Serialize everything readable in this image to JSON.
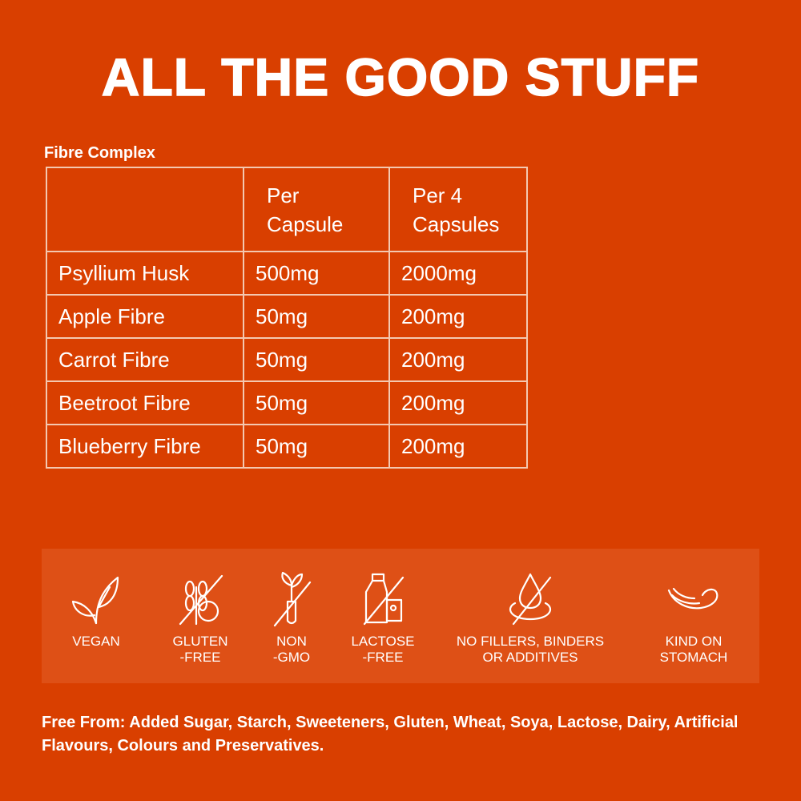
{
  "title": "ALL THE GOOD STUFF",
  "table": {
    "caption": "Fibre Complex",
    "headers": [
      "",
      "Per\nCapsule",
      "Per 4\nCapsules"
    ],
    "rows": [
      [
        "Psyllium Husk",
        "500mg",
        "2000mg"
      ],
      [
        "Apple Fibre",
        "50mg",
        "200mg"
      ],
      [
        "Carrot Fibre",
        "50mg",
        "200mg"
      ],
      [
        "Beetroot Fibre",
        "50mg",
        "200mg"
      ],
      [
        "Blueberry Fibre",
        "50mg",
        "200mg"
      ]
    ]
  },
  "badges": [
    {
      "icon": "leaf-icon",
      "label": "VEGAN"
    },
    {
      "icon": "wheat-crossed-icon",
      "label": "GLUTEN\n-FREE"
    },
    {
      "icon": "plant-tube-crossed-icon",
      "label": "NON\n-GMO"
    },
    {
      "icon": "milk-cheese-crossed-icon",
      "label": "LACTOSE\n-FREE"
    },
    {
      "icon": "drop-crossed-icon",
      "label": "NO FILLERS, BINDERS\nOR ADDITIVES"
    },
    {
      "icon": "stomach-icon",
      "label": "KIND ON\nSTOMACH"
    }
  ],
  "free_from": "Free From: Added Sugar, Starch, Sweeteners, Gluten, Wheat, Soya, Lactose, Dairy, Artificial Flavours, Colours and Preservatives.",
  "colors": {
    "background": "#D93F00",
    "panel": "#DE5016",
    "text": "#FFFFFF"
  }
}
